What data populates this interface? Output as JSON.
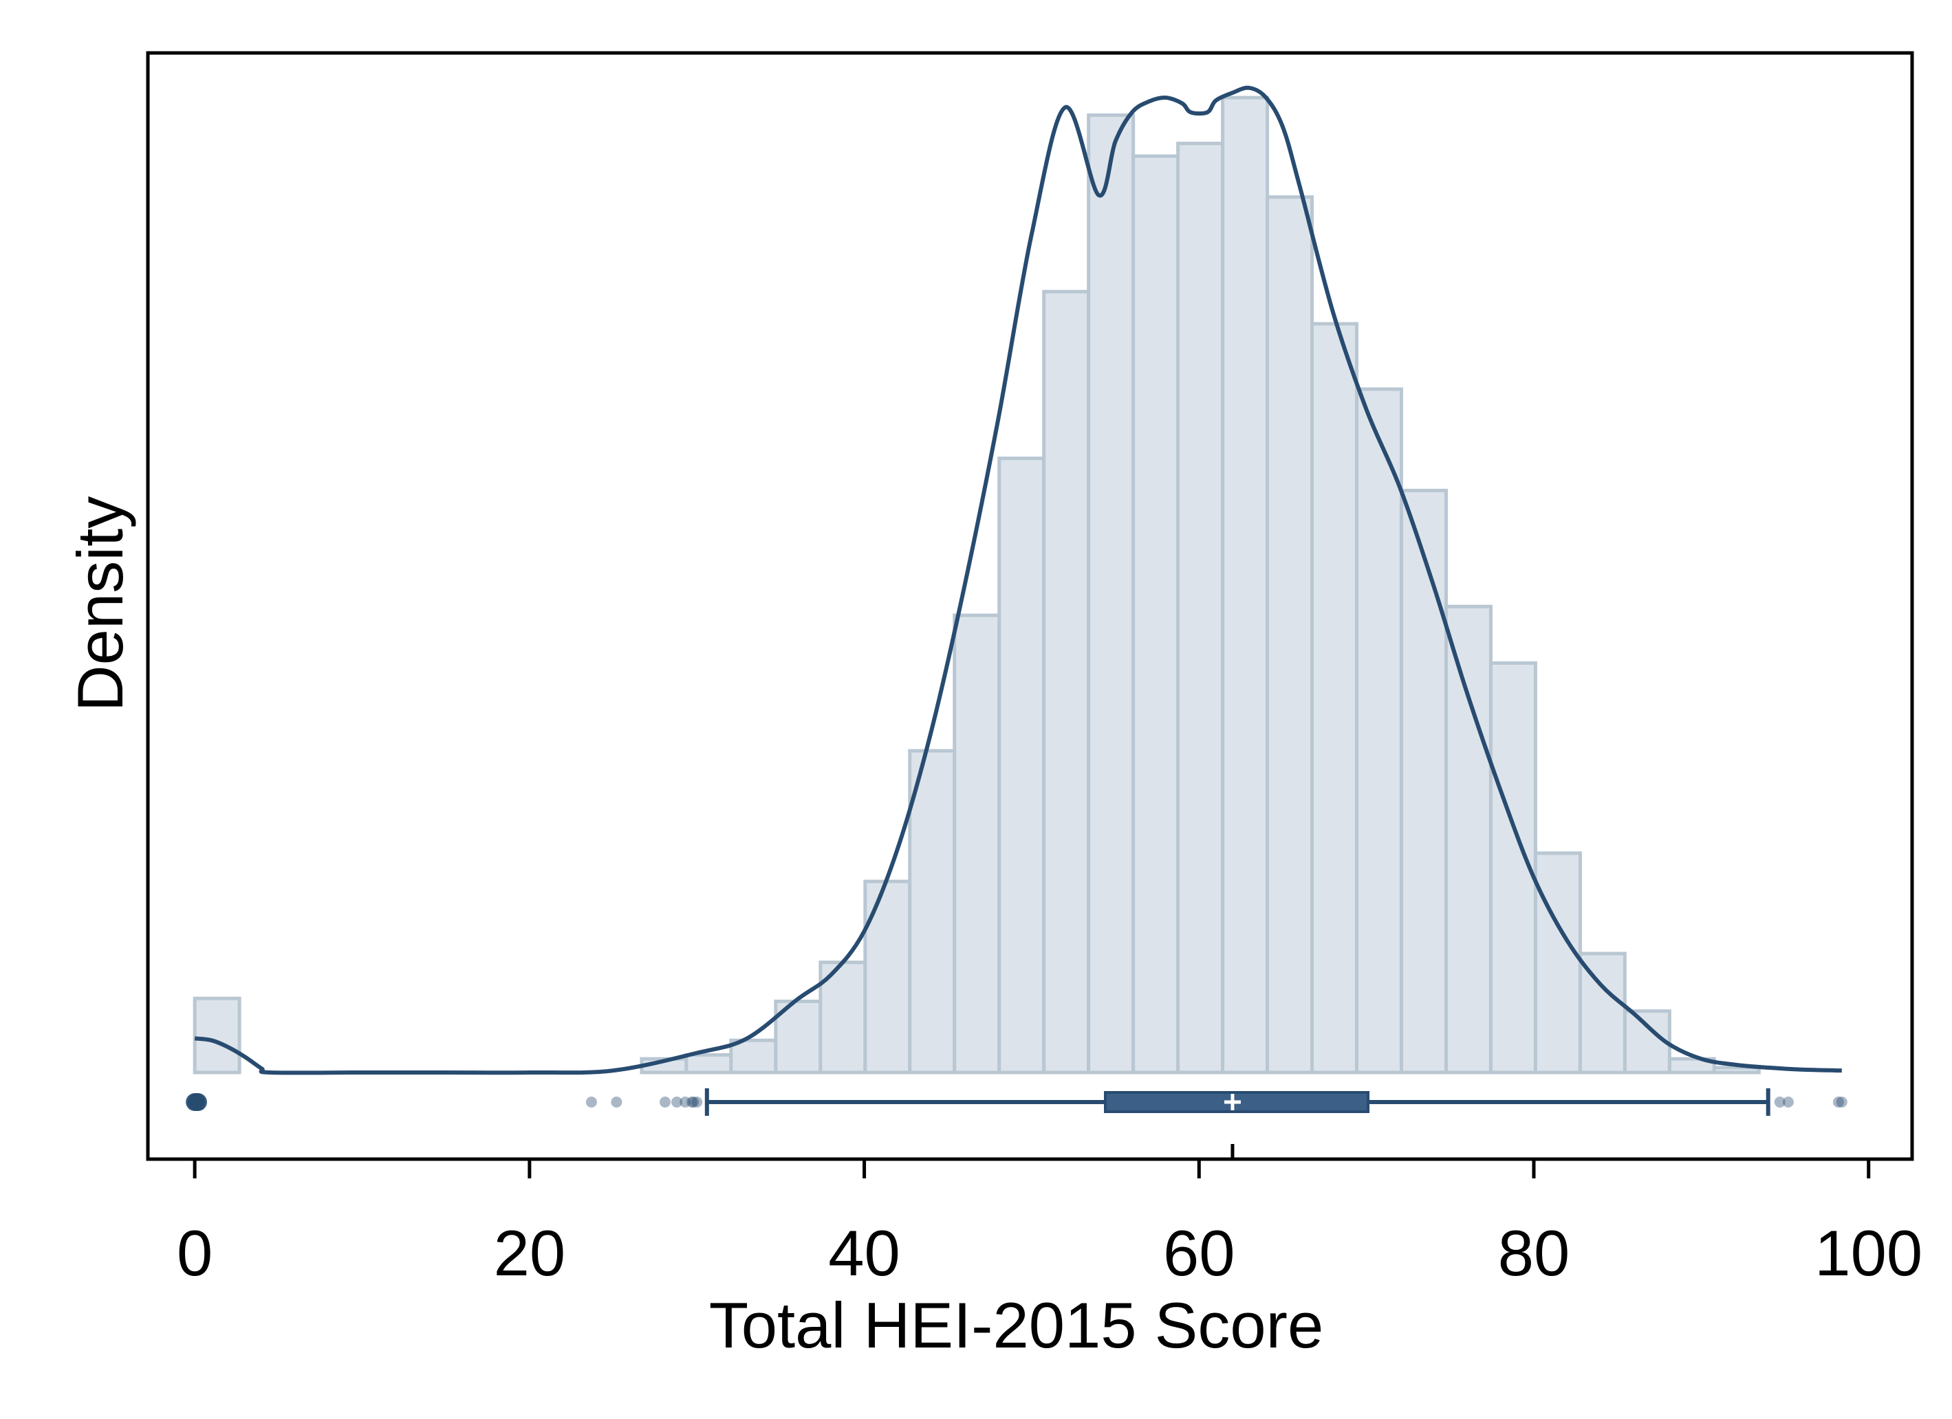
{
  "chart_data": {
    "type": "histogram",
    "title": "",
    "xlabel": "Total HEI-2015 Score",
    "ylabel": "Density",
    "xlim": [
      -2.8,
      102.6
    ],
    "ylim": [
      0,
      1
    ],
    "x_ticks": [
      0,
      20,
      40,
      60,
      80,
      100
    ],
    "y_ticks": [],
    "grid": false,
    "legend": "none",
    "colors": {
      "bar_fill": "#dce3ea",
      "bar_stroke": "#b9c7d3",
      "line": "#284b70",
      "box": "#3b5f86",
      "outlier": "#284b70",
      "median_mark": "#ffffff"
    },
    "histogram": {
      "bin_edges": [
        0,
        2.67,
        5.34,
        8.01,
        10.68,
        13.35,
        16.02,
        18.69,
        21.36,
        24.03,
        26.7,
        29.37,
        32.04,
        34.71,
        37.38,
        40.05,
        42.72,
        45.39,
        48.06,
        50.73,
        53.4,
        56.07,
        58.74,
        61.41,
        64.08,
        66.75,
        69.42,
        72.09,
        74.76,
        77.43,
        80.1,
        82.77,
        85.44,
        88.11,
        90.78,
        93.45
      ],
      "values": [
        0.076,
        0.0,
        0.0,
        0.0,
        0.0,
        0.0,
        0.0,
        0.0,
        0.0,
        0.0,
        0.014,
        0.018,
        0.033,
        0.073,
        0.113,
        0.196,
        0.33,
        0.469,
        0.63,
        0.801,
        0.982,
        0.94,
        0.953,
        1.0,
        0.898,
        0.768,
        0.701,
        0.597,
        0.478,
        0.42,
        0.225,
        0.122,
        0.063,
        0.014,
        0.005
      ]
    },
    "density_curve": {
      "x": [
        0,
        1,
        2,
        3,
        4,
        4.5,
        10,
        15,
        20,
        25,
        30,
        33,
        36,
        38,
        40,
        42,
        44,
        46,
        48,
        50,
        52,
        54,
        55,
        56,
        57,
        58,
        59,
        59.5,
        60.5,
        61,
        62,
        63,
        64,
        65,
        66,
        68,
        70,
        72,
        74,
        76,
        78,
        80,
        82,
        84,
        86,
        88,
        90,
        92,
        94,
        96,
        98.4
      ],
      "y": [
        0.035,
        0.033,
        0.026,
        0.016,
        0.004,
        0.0,
        0.0,
        0.0,
        0.0,
        0.002,
        0.02,
        0.035,
        0.075,
        0.1,
        0.145,
        0.23,
        0.35,
        0.5,
        0.67,
        0.86,
        0.99,
        0.9,
        0.955,
        0.985,
        0.996,
        1.0,
        0.994,
        0.985,
        0.985,
        0.997,
        1.005,
        1.01,
        1.0,
        0.97,
        0.91,
        0.78,
        0.68,
        0.6,
        0.5,
        0.39,
        0.29,
        0.2,
        0.135,
        0.09,
        0.06,
        0.03,
        0.014,
        0.008,
        0.005,
        0.003,
        0.002
      ]
    },
    "boxplot": {
      "whisker_low": 30.6,
      "q1": 54.4,
      "median": 62.0,
      "mean": 62.0,
      "q3": 70.1,
      "whisker_high": 94.0,
      "outliers": [
        0,
        0.2,
        0.1,
        23.7,
        25.2,
        28.1,
        28.8,
        29.3,
        29.7,
        29.8,
        30.0,
        94.7,
        95.2,
        98.2,
        98.4
      ]
    }
  }
}
